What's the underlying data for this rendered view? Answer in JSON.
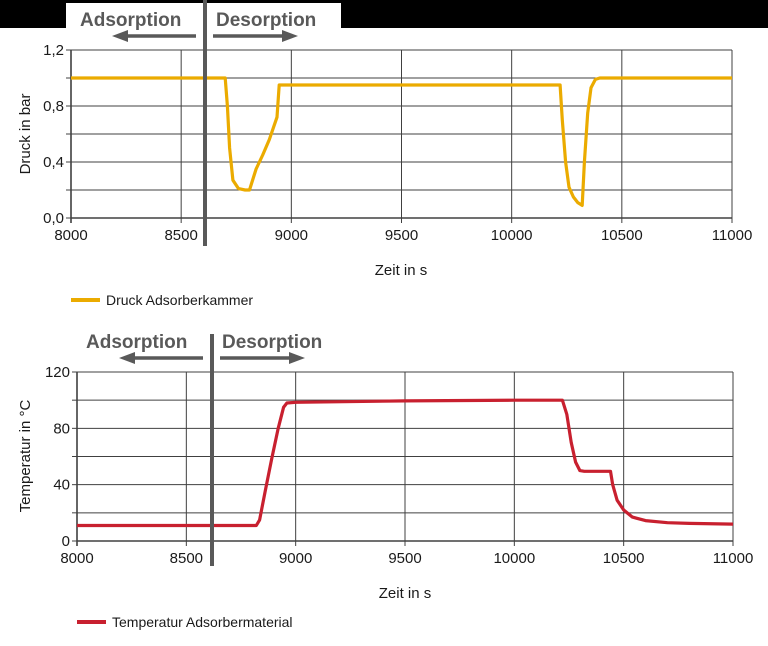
{
  "chart_data": [
    {
      "type": "line",
      "title": "",
      "phase_labels": {
        "left": "Adsorption",
        "right": "Desorption",
        "divider_x": 8620
      },
      "xlabel": "Zeit in s",
      "ylabel": "Druck in bar",
      "xlim": [
        8000,
        11000
      ],
      "ylim": [
        0.0,
        1.2
      ],
      "x_ticks": [
        "8000",
        "8500",
        "9000",
        "9500",
        "10000",
        "10500",
        "11000"
      ],
      "y_ticks": [
        "0,0",
        "0,4",
        "0,8",
        "1,2"
      ],
      "grid": true,
      "legend_position": "bottom-left",
      "series": [
        {
          "name": "Druck Adsorberkammer",
          "color": "#EBAB00",
          "x": [
            8000,
            8700,
            8710,
            8720,
            8735,
            8760,
            8790,
            8810,
            8840,
            8870,
            8900,
            8935,
            8945,
            8960,
            9500,
            10000,
            10220,
            10230,
            10245,
            10260,
            10280,
            10300,
            10320,
            10330,
            10345,
            10360,
            10380,
            10400,
            11000
          ],
          "values": [
            1.0,
            1.0,
            0.8,
            0.5,
            0.27,
            0.21,
            0.2,
            0.2,
            0.35,
            0.45,
            0.56,
            0.72,
            0.95,
            0.95,
            0.95,
            0.95,
            0.95,
            0.7,
            0.4,
            0.22,
            0.15,
            0.11,
            0.09,
            0.4,
            0.75,
            0.93,
            0.99,
            1.0,
            1.0
          ]
        }
      ]
    },
    {
      "type": "line",
      "title": "",
      "phase_labels": {
        "left": "Adsorption",
        "right": "Desorption",
        "divider_x": 8640
      },
      "xlabel": "Zeit in s",
      "ylabel": "Temperatur in °C",
      "xlim": [
        8000,
        11000
      ],
      "ylim": [
        0,
        120
      ],
      "x_ticks": [
        "8000",
        "8500",
        "9000",
        "9500",
        "10000",
        "10500",
        "11000"
      ],
      "y_ticks": [
        "0",
        "40",
        "80",
        "120"
      ],
      "grid": true,
      "legend_position": "bottom-left",
      "series": [
        {
          "name": "Temperatur Adsorbermaterial",
          "color": "#C8202F",
          "x": [
            8000,
            8500,
            8820,
            8835,
            8860,
            8890,
            8920,
            8945,
            8960,
            9000,
            9500,
            10000,
            10220,
            10240,
            10260,
            10280,
            10300,
            10320,
            10440,
            10450,
            10470,
            10500,
            10540,
            10600,
            10700,
            10800,
            11000
          ],
          "values": [
            11,
            11,
            11,
            15,
            35,
            58,
            80,
            95,
            98,
            98.5,
            99.5,
            100,
            100,
            90,
            70,
            56,
            50,
            49.5,
            49.5,
            40,
            29,
            22,
            17,
            14.5,
            13,
            12.5,
            12
          ]
        }
      ]
    }
  ],
  "top_chart": {
    "phase_left": "Adsorption",
    "phase_right": "Desorption",
    "ylabel": "Druck in bar",
    "xlabel": "Zeit in s",
    "legend": "Druck Adsorberkammer"
  },
  "bottom_chart": {
    "phase_left": "Adsorption",
    "phase_right": "Desorption",
    "ylabel": "Temperatur in °C",
    "xlabel": "Zeit in s",
    "legend": "Temperatur Adsorbermaterial"
  },
  "colors": {
    "pressure": "#EBAB00",
    "temperature": "#C8202F",
    "grid": "#404040",
    "phase_text": "#595959"
  }
}
